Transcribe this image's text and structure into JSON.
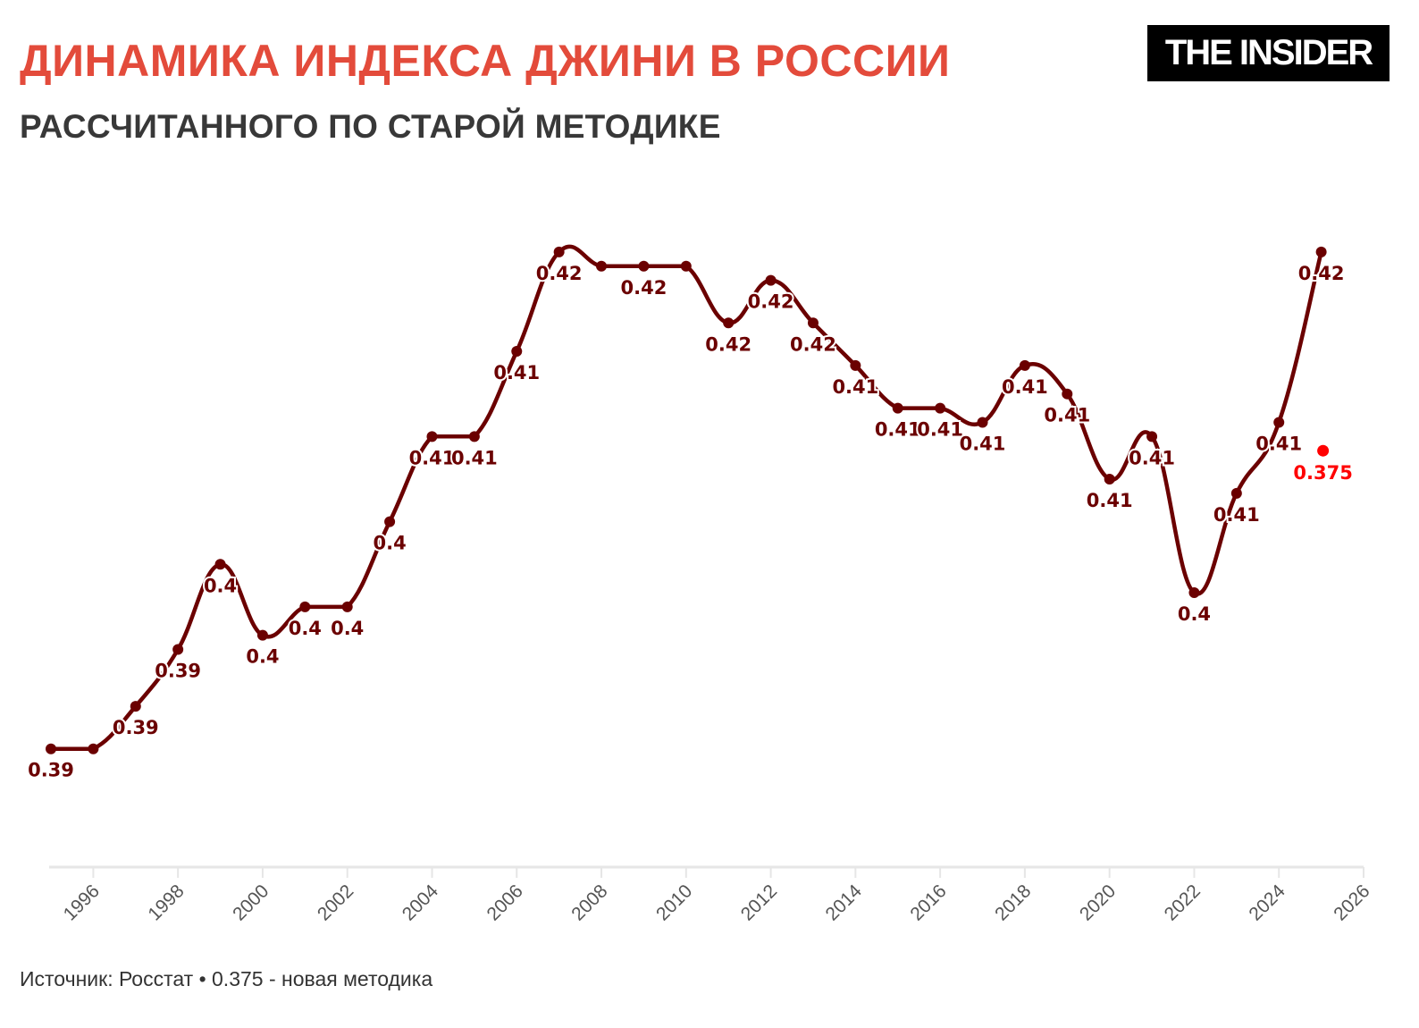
{
  "header": {
    "title": "ДИНАМИКА ИНДЕКСА ДЖИНИ В РОССИИ",
    "subtitle": "РАССЧИТАННОГО ПО СТАРОЙ МЕТОДИКЕ",
    "logo": "THE INSIDER"
  },
  "footer": {
    "source": "Источник: Росстат • 0.375 - новая методика"
  },
  "colors": {
    "title": "#e34b3b",
    "line": "#6b0000",
    "highlight": "#ff0000",
    "axis": "#e6e6e6"
  },
  "chart_data": {
    "type": "line",
    "title": "ДИНАМИКА ИНДЕКСА ДЖИНИ В РОССИИ",
    "subtitle": "РАССЧИТАННОГО ПО СТАРОЙ МЕТОДИКЕ",
    "xlabel": "",
    "ylabel": "",
    "xlim": [
      1995,
      2026
    ],
    "ylim": [
      0.381,
      0.423
    ],
    "x_ticks": [
      "1996",
      "1998",
      "2000",
      "2002",
      "2004",
      "2006",
      "2008",
      "2010",
      "2012",
      "2014",
      "2016",
      "2018",
      "2020",
      "2022",
      "2024",
      "2026"
    ],
    "grid": false,
    "series": [
      {
        "x": [
          1995,
          1996,
          1997,
          1998,
          1999,
          2000,
          2001,
          2002,
          2003,
          2004,
          2005,
          2006,
          2007,
          2008,
          2009,
          2010,
          2011,
          2012,
          2013,
          2014,
          2015,
          2016,
          2017,
          2018,
          2019,
          2020,
          2021,
          2022,
          2023,
          2024,
          2025
        ],
        "values": [
          0.387,
          0.387,
          0.39,
          0.394,
          0.4,
          0.395,
          0.397,
          0.397,
          0.403,
          0.409,
          0.409,
          0.415,
          0.422,
          0.421,
          0.421,
          0.421,
          0.417,
          0.42,
          0.417,
          0.414,
          0.411,
          0.411,
          0.41,
          0.414,
          0.412,
          0.406,
          0.409,
          0.398,
          0.405,
          0.41,
          0.422
        ],
        "labels": [
          "0.39",
          "",
          "0.39",
          "0.39",
          "0.4",
          "0.4",
          "0.4",
          "0.4",
          "0.4",
          "0.41",
          "0.41",
          "0.41",
          "0.42",
          "",
          "0.42",
          "",
          "0.42",
          "0.42",
          "0.42",
          "0.41",
          "0.41",
          "0.41",
          "0.41",
          "0.41",
          "0.41",
          "0.41",
          "0.41",
          "0.4",
          "0.41",
          "0.41",
          "0.42"
        ]
      },
      {
        "x": [
          2025
        ],
        "values": [
          0.408
        ],
        "labels": [
          "0.375"
        ]
      }
    ]
  }
}
